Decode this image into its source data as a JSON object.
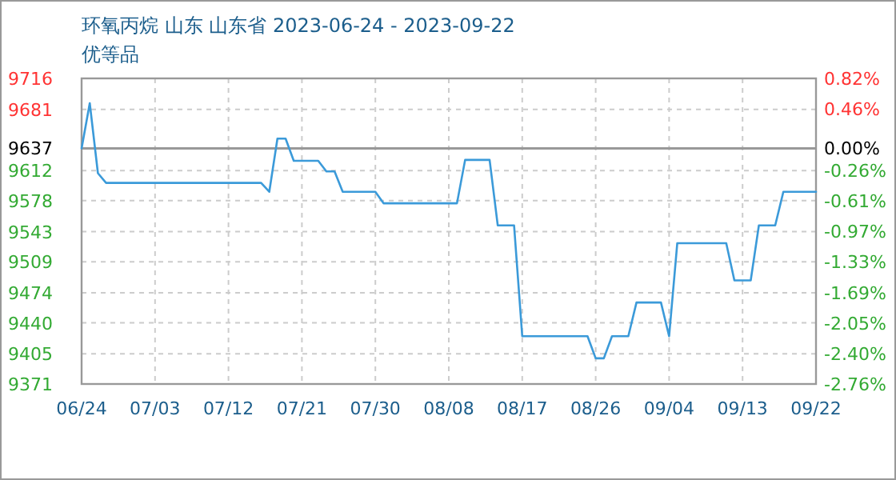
{
  "chart_data": {
    "type": "line",
    "title": "环氧丙烷 山东 山东省 2023-06-24 - 2023-09-22",
    "subtitle": "优等品",
    "x": [
      "2023-06-24",
      "2023-06-25",
      "2023-06-26",
      "2023-06-27",
      "2023-07-16",
      "2023-07-17",
      "2023-07-18",
      "2023-07-19",
      "2023-07-20",
      "2023-07-23",
      "2023-07-24",
      "2023-07-25",
      "2023-07-26",
      "2023-07-30",
      "2023-07-31",
      "2023-08-09",
      "2023-08-10",
      "2023-08-13",
      "2023-08-14",
      "2023-08-16",
      "2023-08-17",
      "2023-08-25",
      "2023-08-26",
      "2023-08-27",
      "2023-08-28",
      "2023-08-30",
      "2023-08-31",
      "2023-09-03",
      "2023-09-04",
      "2023-09-05",
      "2023-09-11",
      "2023-09-12",
      "2023-09-14",
      "2023-09-15",
      "2023-09-17",
      "2023-09-18",
      "2023-09-22"
    ],
    "series": [
      {
        "color": "#3b9ad9",
        "values": [
          9637,
          9688,
          9609,
          9598,
          9598,
          9588,
          9648,
          9648,
          9623,
          9623,
          9611,
          9611,
          9588,
          9588,
          9575,
          9575,
          9624,
          9624,
          9550,
          9550,
          9425,
          9425,
          9400,
          9400,
          9425,
          9425,
          9463,
          9463,
          9425,
          9530,
          9530,
          9488,
          9488,
          9550,
          9550,
          9588,
          9588
        ]
      }
    ],
    "xlim": [
      "2023-06-24",
      "2023-09-22"
    ],
    "xticks": [
      {
        "value": "2023-06-24",
        "label": "06/24"
      },
      {
        "value": "2023-07-03",
        "label": "07/03"
      },
      {
        "value": "2023-07-12",
        "label": "07/12"
      },
      {
        "value": "2023-07-21",
        "label": "07/21"
      },
      {
        "value": "2023-07-30",
        "label": "07/30"
      },
      {
        "value": "2023-08-08",
        "label": "08/08"
      },
      {
        "value": "2023-08-17",
        "label": "08/17"
      },
      {
        "value": "2023-08-26",
        "label": "08/26"
      },
      {
        "value": "2023-09-04",
        "label": "09/04"
      },
      {
        "value": "2023-09-13",
        "label": "09/13"
      },
      {
        "value": "2023-09-22",
        "label": "09/22"
      }
    ],
    "ylim": [
      9371,
      9716
    ],
    "yticks": [
      9716,
      9681,
      9637,
      9612,
      9578,
      9543,
      9509,
      9474,
      9440,
      9405,
      9371
    ],
    "y2lim": [
      -2.76,
      0.82
    ],
    "y2ticks": [
      {
        "value": 0.82,
        "label": "0.82%"
      },
      {
        "value": 0.46,
        "label": "0.46%"
      },
      {
        "value": 0,
        "label": "0.00%"
      },
      {
        "value": -0.26,
        "label": "-0.26%"
      },
      {
        "value": -0.61,
        "label": "-0.61%"
      },
      {
        "value": -0.97,
        "label": "-0.97%"
      },
      {
        "value": -1.33,
        "label": "-1.33%"
      },
      {
        "value": -1.69,
        "label": "-1.69%"
      },
      {
        "value": -2.05,
        "label": "-2.05%"
      },
      {
        "value": -2.4,
        "label": "-2.40%"
      },
      {
        "value": -2.76,
        "label": "-2.76%"
      }
    ],
    "ref_lines": [
      {
        "axis": "y",
        "value": 9637,
        "color": "#999999"
      }
    ],
    "grid": true,
    "line_style": "solid",
    "marker": "none"
  }
}
